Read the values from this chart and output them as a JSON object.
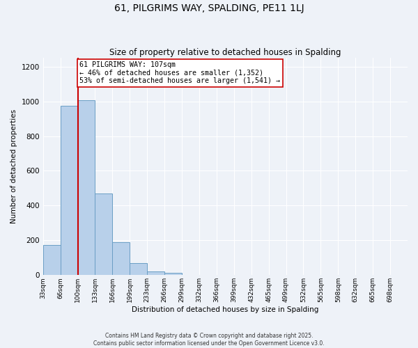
{
  "title": "61, PILGRIMS WAY, SPALDING, PE11 1LJ",
  "subtitle": "Size of property relative to detached houses in Spalding",
  "xlabel": "Distribution of detached houses by size in Spalding",
  "ylabel": "Number of detached properties",
  "bar_values": [
    175,
    975,
    1005,
    470,
    190,
    70,
    22,
    12,
    0,
    0,
    0,
    0,
    0,
    0,
    0,
    0,
    0,
    0,
    0,
    0
  ],
  "bar_labels": [
    "33sqm",
    "66sqm",
    "100sqm",
    "133sqm",
    "166sqm",
    "199sqm",
    "233sqm",
    "266sqm",
    "299sqm",
    "332sqm",
    "366sqm",
    "399sqm",
    "432sqm",
    "465sqm",
    "499sqm",
    "532sqm",
    "565sqm",
    "598sqm",
    "632sqm",
    "665sqm",
    "698sqm"
  ],
  "bar_color": "#b8d0ea",
  "bar_edge_color": "#6a9ec5",
  "vline_color": "#cc0000",
  "annotation_text": "61 PILGRIMS WAY: 107sqm\n← 46% of detached houses are smaller (1,352)\n53% of semi-detached houses are larger (1,541) →",
  "annotation_box_color": "#ffffff",
  "annotation_box_edge": "#cc0000",
  "ylim": [
    0,
    1250
  ],
  "yticks": [
    0,
    200,
    400,
    600,
    800,
    1000,
    1200
  ],
  "bg_color": "#eef2f8",
  "grid_color": "#ffffff",
  "footer_line1": "Contains HM Land Registry data © Crown copyright and database right 2025.",
  "footer_line2": "Contains public sector information licensed under the Open Government Licence v3.0."
}
